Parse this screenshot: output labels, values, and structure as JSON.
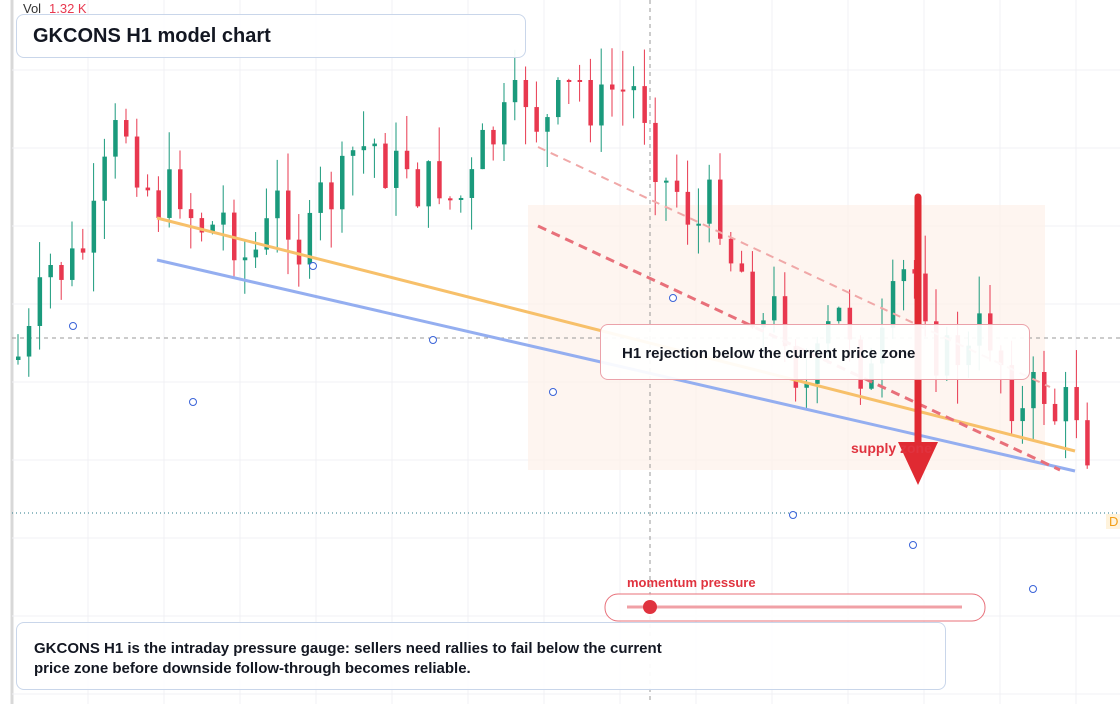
{
  "header": {
    "vol_label": "Vol",
    "vol_value": "1.32 K",
    "title": "GKCONS H1 model chart"
  },
  "annotations": {
    "rejection": "H1 rejection below the current price zone",
    "supply": "supply zone",
    "momentum": "momentum pressure",
    "price_tag": "D"
  },
  "caption": "GKCONS H1 is the intraday pressure gauge: sellers need rallies to fail below the current price zone before downside follow-through becomes reliable."
}
